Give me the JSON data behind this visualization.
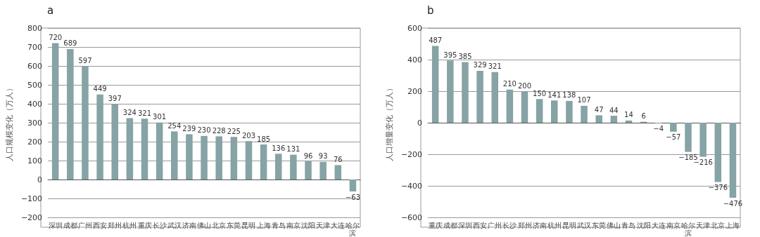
{
  "chart_data": [
    {
      "type": "bar",
      "title": "a",
      "ylabel": "人口规模变化（万人）",
      "categories": [
        "深圳",
        "成都",
        "广州",
        "西安",
        "郑州",
        "杭州",
        "重庆",
        "长沙",
        "武汉",
        "济南",
        "佛山",
        "北京",
        "东莞",
        "昆明",
        "上海",
        "青岛",
        "南京",
        "沈阳",
        "天津",
        "大连",
        "哈尔滨"
      ],
      "values": [
        720,
        689,
        597,
        449,
        397,
        324,
        321,
        301,
        254,
        239,
        230,
        228,
        225,
        203,
        185,
        136,
        131,
        96,
        93,
        76,
        -63
      ],
      "color": "#86a3a5",
      "ylim": [
        -200,
        800
      ],
      "yticks": [
        -200,
        -100,
        0,
        100,
        200,
        300,
        400,
        500,
        600,
        700,
        800
      ],
      "grid": "y",
      "data_labels": true
    },
    {
      "type": "bar",
      "title": "b",
      "ylabel": "人口增量变化（万人）",
      "categories": [
        "重庆",
        "成都",
        "深圳",
        "西安",
        "广州",
        "长沙",
        "郑州",
        "济南",
        "杭州",
        "昆明",
        "武汉",
        "东莞",
        "佛山",
        "青岛",
        "沈阳",
        "大连",
        "南京",
        "哈尔滨",
        "天津",
        "北京",
        "上海"
      ],
      "values": [
        487,
        395,
        385,
        329,
        321,
        210,
        200,
        150,
        141,
        138,
        107,
        47,
        44,
        14,
        6,
        -4,
        -57,
        -185,
        -216,
        -376,
        -476
      ],
      "color": "#86a3a5",
      "ylim": [
        -600,
        600
      ],
      "yticks": [
        -600,
        -400,
        -200,
        0,
        200,
        400,
        600
      ],
      "grid": "y",
      "data_labels": true
    }
  ]
}
